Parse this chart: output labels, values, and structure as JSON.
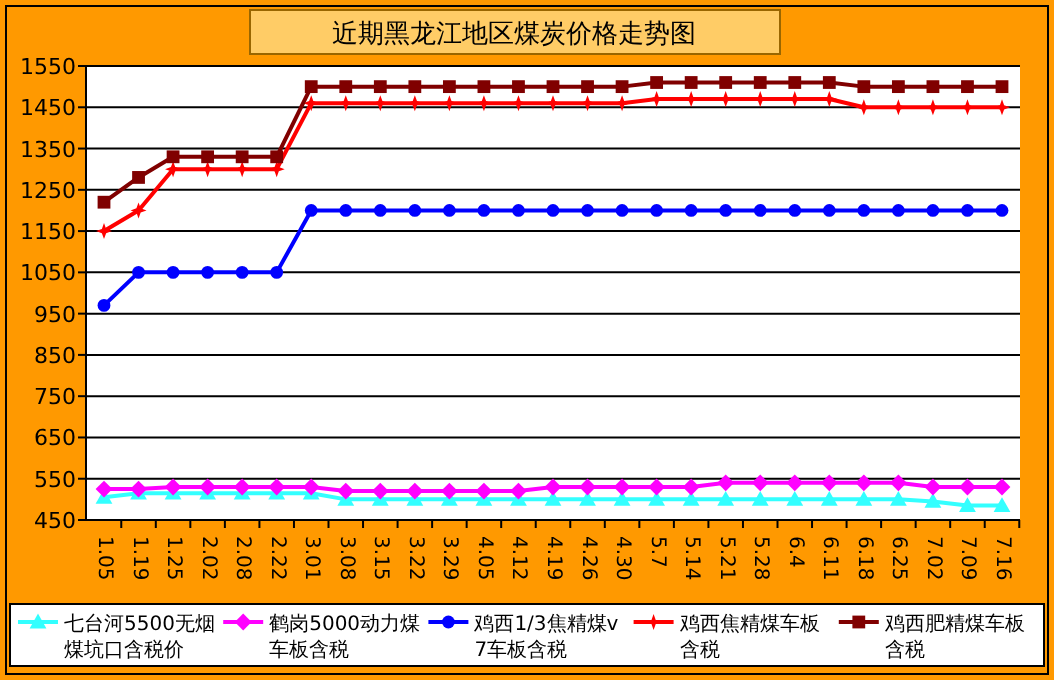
{
  "chart_data": {
    "type": "line",
    "title": "近期黑龙江地区煤炭价格走势图",
    "categories": [
      "1.05",
      "1.19",
      "1.25",
      "2.02",
      "2.08",
      "2.22",
      "3.01",
      "3.08",
      "3.15",
      "3.22",
      "3.29",
      "4.05",
      "4.12",
      "4.19",
      "4.26",
      "4.30",
      "5.7",
      "5.14",
      "5.21",
      "5.28",
      "6.4",
      "6.11",
      "6.18",
      "6.25",
      "7.02",
      "7.09",
      "7.16"
    ],
    "series": [
      {
        "name": "七台河5500无烟煤坑口含税价",
        "color": "#33ffff",
        "marker": "triangle",
        "values": [
          505,
          515,
          515,
          515,
          515,
          515,
          515,
          500,
          500,
          500,
          500,
          500,
          500,
          500,
          500,
          500,
          500,
          500,
          500,
          500,
          500,
          500,
          500,
          500,
          495,
          485,
          485
        ]
      },
      {
        "name": "鹤岗5000动力煤车板含税",
        "color": "#ff00ff",
        "marker": "diamond",
        "values": [
          525,
          525,
          530,
          530,
          530,
          530,
          530,
          520,
          520,
          520,
          520,
          520,
          520,
          530,
          530,
          530,
          530,
          530,
          540,
          540,
          540,
          540,
          540,
          540,
          530,
          530,
          530
        ]
      },
      {
        "name": "鸡西1/3焦精煤v7车板含税",
        "color": "#0000ff",
        "marker": "circle",
        "values": [
          970,
          1050,
          1050,
          1050,
          1050,
          1050,
          1200,
          1200,
          1200,
          1200,
          1200,
          1200,
          1200,
          1200,
          1200,
          1200,
          1200,
          1200,
          1200,
          1200,
          1200,
          1200,
          1200,
          1200,
          1200,
          1200,
          1200
        ]
      },
      {
        "name": "鸡西焦精煤车板含税",
        "color": "#ff0000",
        "marker": "star",
        "values": [
          1150,
          1200,
          1300,
          1300,
          1300,
          1300,
          1460,
          1460,
          1460,
          1460,
          1460,
          1460,
          1460,
          1460,
          1460,
          1460,
          1470,
          1470,
          1470,
          1470,
          1470,
          1470,
          1450,
          1450,
          1450,
          1450,
          1450
        ]
      },
      {
        "name": "鸡西肥精煤车板含税",
        "color": "#800000",
        "marker": "square",
        "values": [
          1220,
          1280,
          1330,
          1330,
          1330,
          1330,
          1500,
          1500,
          1500,
          1500,
          1500,
          1500,
          1500,
          1500,
          1500,
          1500,
          1510,
          1510,
          1510,
          1510,
          1510,
          1510,
          1500,
          1500,
          1500,
          1500,
          1500
        ]
      }
    ],
    "ylim": [
      450,
      1550
    ],
    "yticks": [
      450,
      550,
      650,
      750,
      850,
      950,
      1050,
      1150,
      1250,
      1350,
      1450,
      1550
    ],
    "grid": "y",
    "legend": "bottom"
  }
}
